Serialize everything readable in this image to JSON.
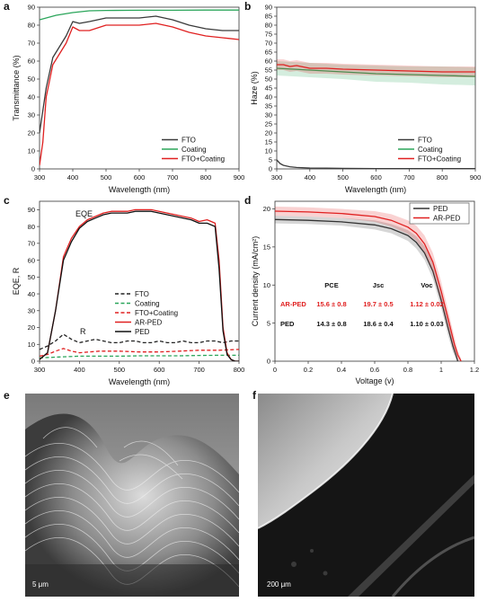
{
  "panels": {
    "a": {
      "letter": "a",
      "chart_data": {
        "type": "line",
        "xlabel": "Wavelength (nm)",
        "ylabel": "Transmittance (%)",
        "xlim": [
          300,
          900
        ],
        "ylim": [
          0,
          90
        ],
        "xticks": [
          300,
          400,
          500,
          600,
          700,
          800,
          900
        ],
        "yticks": [
          0,
          10,
          20,
          30,
          40,
          50,
          60,
          70,
          80,
          90
        ],
        "legend_position": "bottom-right",
        "series": [
          {
            "name": "FTO",
            "color": "#3a3a3a",
            "x": [
              300,
              320,
              340,
              360,
              380,
              400,
              420,
              450,
              500,
              550,
              600,
              650,
              700,
              750,
              800,
              850,
              900
            ],
            "y": [
              20,
              45,
              62,
              68,
              74,
              82,
              81,
              82,
              84,
              84,
              84,
              85,
              83,
              80,
              78,
              77,
              77
            ]
          },
          {
            "name": "Coating",
            "color": "#2aa55a",
            "x": [
              300,
              350,
              400,
              450,
              500,
              600,
              700,
              800,
              900
            ],
            "y": [
              83,
              85.5,
              87,
              88,
              88.2,
              88.3,
              88.3,
              88.4,
              88.4
            ]
          },
          {
            "name": "FTO+Coating",
            "color": "#e02020",
            "x": [
              300,
              310,
              320,
              340,
              360,
              380,
              400,
              420,
              450,
              500,
              550,
              600,
              650,
              700,
              750,
              800,
              850,
              900
            ],
            "y": [
              2,
              15,
              40,
              58,
              64,
              70,
              79,
              77,
              77,
              80,
              80,
              80,
              81,
              79,
              76,
              74,
              73,
              72
            ]
          }
        ]
      }
    },
    "b": {
      "letter": "b",
      "chart_data": {
        "type": "line",
        "xlabel": "Wavelength (nm)",
        "ylabel": "Haze (%)",
        "xlim": [
          300,
          900
        ],
        "ylim": [
          0,
          90
        ],
        "xticks": [
          300,
          400,
          500,
          600,
          700,
          800,
          900
        ],
        "yticks": [
          0,
          5,
          10,
          15,
          20,
          25,
          30,
          35,
          40,
          45,
          50,
          55,
          60,
          65,
          70,
          75,
          80,
          85,
          90
        ],
        "legend_position": "bottom-right",
        "series": [
          {
            "name": "FTO",
            "color": "#3a3a3a",
            "x": [
              300,
              310,
              320,
              340,
              360,
              400,
              450,
              500,
              600,
              700,
              800,
              900
            ],
            "y": [
              5,
              3,
              2,
              1.2,
              0.8,
              0.5,
              0.4,
              0.3,
              0.2,
              0.2,
              0.2,
              0.2
            ]
          },
          {
            "name": "Coating",
            "color": "#2aa55a",
            "x": [
              300,
              400,
              500,
              600,
              700,
              800,
              900
            ],
            "y": [
              56,
              55,
              54,
              53,
              52.5,
              52,
              51.5
            ],
            "band": [
              4,
              4,
              4,
              4.5,
              4.5,
              5,
              5
            ]
          },
          {
            "name": "FTO+Coating",
            "color": "#e02020",
            "x": [
              300,
              320,
              340,
              360,
              400,
              450,
              500,
              600,
              700,
              800,
              900
            ],
            "y": [
              58,
              58,
              57,
              57.5,
              56,
              56,
              55.5,
              55,
              54.5,
              54,
              54
            ],
            "band": [
              3,
              3,
              3,
              3,
              3,
              3,
              3,
              3,
              3,
              3,
              3
            ]
          }
        ]
      }
    },
    "c": {
      "letter": "c",
      "chart_data": {
        "type": "line",
        "xlabel": "Wavelength (nm)",
        "ylabel": "EQE, R",
        "xlim": [
          300,
          800
        ],
        "ylim": [
          0,
          95
        ],
        "xticks": [
          300,
          400,
          500,
          600,
          700,
          800
        ],
        "yticks": [
          0,
          10,
          20,
          30,
          40,
          50,
          60,
          70,
          80,
          90
        ],
        "annotations": [
          "EQE",
          "R"
        ],
        "legend_position": "bottom-right",
        "series": [
          {
            "name": "FTO",
            "color": "#222222",
            "dash": "dash",
            "x": [
              300,
              320,
              340,
              360,
              380,
              400,
              420,
              440,
              460,
              480,
              500,
              520,
              540,
              560,
              580,
              600,
              620,
              640,
              660,
              680,
              700,
              720,
              740,
              760,
              780,
              800
            ],
            "y": [
              7,
              9,
              12,
              16,
              13,
              11,
              12,
              13,
              12,
              11,
              11,
              12,
              12,
              11,
              11,
              12,
              11,
              11,
              12,
              11,
              11,
              12,
              12,
              11,
              12,
              12
            ]
          },
          {
            "name": "Coating",
            "color": "#2aa55a",
            "dash": "dash",
            "x": [
              300,
              350,
              400,
              450,
              500,
              550,
              600,
              650,
              700,
              750,
              800
            ],
            "y": [
              2,
              2.5,
              3,
              3,
              3,
              3.2,
              3.2,
              3.2,
              3.4,
              3.5,
              3.5
            ]
          },
          {
            "name": "FTO+Coating",
            "color": "#e02020",
            "dash": "dash",
            "x": [
              300,
              320,
              340,
              360,
              380,
              400,
              450,
              500,
              550,
              600,
              650,
              700,
              750,
              800
            ],
            "y": [
              3,
              4,
              6,
              7.5,
              6,
              5,
              6,
              6,
              5.5,
              5.5,
              6,
              6.5,
              6.5,
              7
            ]
          },
          {
            "name": "AR-PED",
            "color": "#e02020",
            "x": [
              300,
              320,
              340,
              360,
              380,
              400,
              420,
              440,
              460,
              480,
              500,
              520,
              540,
              560,
              580,
              600,
              620,
              640,
              660,
              680,
              700,
              720,
              740,
              750,
              760,
              770,
              780,
              790,
              800
            ],
            "y": [
              1,
              5,
              30,
              62,
              73,
              80,
              84,
              86,
              88,
              89,
              89,
              89,
              90,
              90,
              90,
              89,
              88,
              87,
              86,
              85,
              83,
              84,
              82,
              60,
              20,
              5,
              1,
              0,
              0
            ]
          },
          {
            "name": "PED",
            "color": "#111111",
            "x": [
              300,
              320,
              340,
              360,
              380,
              400,
              420,
              440,
              460,
              480,
              500,
              520,
              540,
              560,
              580,
              600,
              620,
              640,
              660,
              680,
              700,
              720,
              740,
              750,
              760,
              770,
              780,
              790,
              800
            ],
            "y": [
              1,
              5,
              30,
              60,
              71,
              79,
              83,
              85,
              87,
              88,
              88,
              88,
              89,
              89,
              89,
              88,
              87,
              86,
              85,
              84,
              82,
              82,
              80,
              55,
              18,
              4,
              1,
              0,
              0
            ]
          }
        ]
      }
    },
    "d": {
      "letter": "d",
      "chart_data": {
        "type": "line",
        "xlabel": "Voltage (v)",
        "ylabel": "Current density (mA/cm²)",
        "xlim": [
          0,
          1.2
        ],
        "ylim": [
          0,
          21
        ],
        "xticks": [
          0,
          0.2,
          0.4,
          0.6,
          0.8,
          1.0,
          1.2
        ],
        "xticklabels": [
          "0",
          "0.2",
          "0.4",
          "0.6",
          "0.8",
          "1",
          "1.2"
        ],
        "yticks": [
          0,
          5,
          10,
          15,
          20
        ],
        "legend_position": "top-right",
        "series": [
          {
            "name": "PED",
            "color": "#333333",
            "x": [
              0,
              0.2,
              0.4,
              0.6,
              0.7,
              0.8,
              0.85,
              0.9,
              0.95,
              1.0,
              1.04,
              1.07,
              1.09,
              1.1
            ],
            "y": [
              18.6,
              18.5,
              18.3,
              17.9,
              17.4,
              16.5,
              15.6,
              14.2,
              11.8,
              8.0,
              4.5,
              2.0,
              0.7,
              0
            ],
            "band": [
              0.5,
              0.5,
              0.5,
              0.6,
              0.6,
              0.7,
              0.8,
              0.9,
              1,
              1,
              1,
              0.8,
              0.5,
              0.3
            ]
          },
          {
            "name": "AR-PED",
            "color": "#e02020",
            "x": [
              0,
              0.2,
              0.4,
              0.6,
              0.7,
              0.8,
              0.85,
              0.9,
              0.95,
              1.0,
              1.05,
              1.08,
              1.1,
              1.12
            ],
            "y": [
              19.7,
              19.6,
              19.4,
              19.0,
              18.5,
              17.6,
              16.8,
              15.4,
              13.0,
              9.2,
              4.8,
              2.2,
              0.8,
              0
            ],
            "band": [
              0.6,
              0.6,
              0.6,
              0.7,
              0.8,
              0.9,
              1,
              1.1,
              1.2,
              1.2,
              1.1,
              0.9,
              0.6,
              0.3
            ]
          }
        ],
        "table": {
          "headers": [
            "PCE",
            "Jsc",
            "Voc"
          ],
          "rows": [
            {
              "label": "AR-PED",
              "values": [
                "15.6 ± 0.8",
                "19.7 ± 0.5",
                "1.12 ± 0.02"
              ],
              "color": "#e02020"
            },
            {
              "label": "PED",
              "values": [
                "14.3 ± 0.8",
                "18.6 ± 0.4",
                "1.10 ± 0.03"
              ],
              "color": "#111111"
            }
          ]
        }
      }
    },
    "e": {
      "letter": "e",
      "scale_bar": "5 μm"
    },
    "f": {
      "letter": "f",
      "scale_bar": "200 μm"
    }
  }
}
